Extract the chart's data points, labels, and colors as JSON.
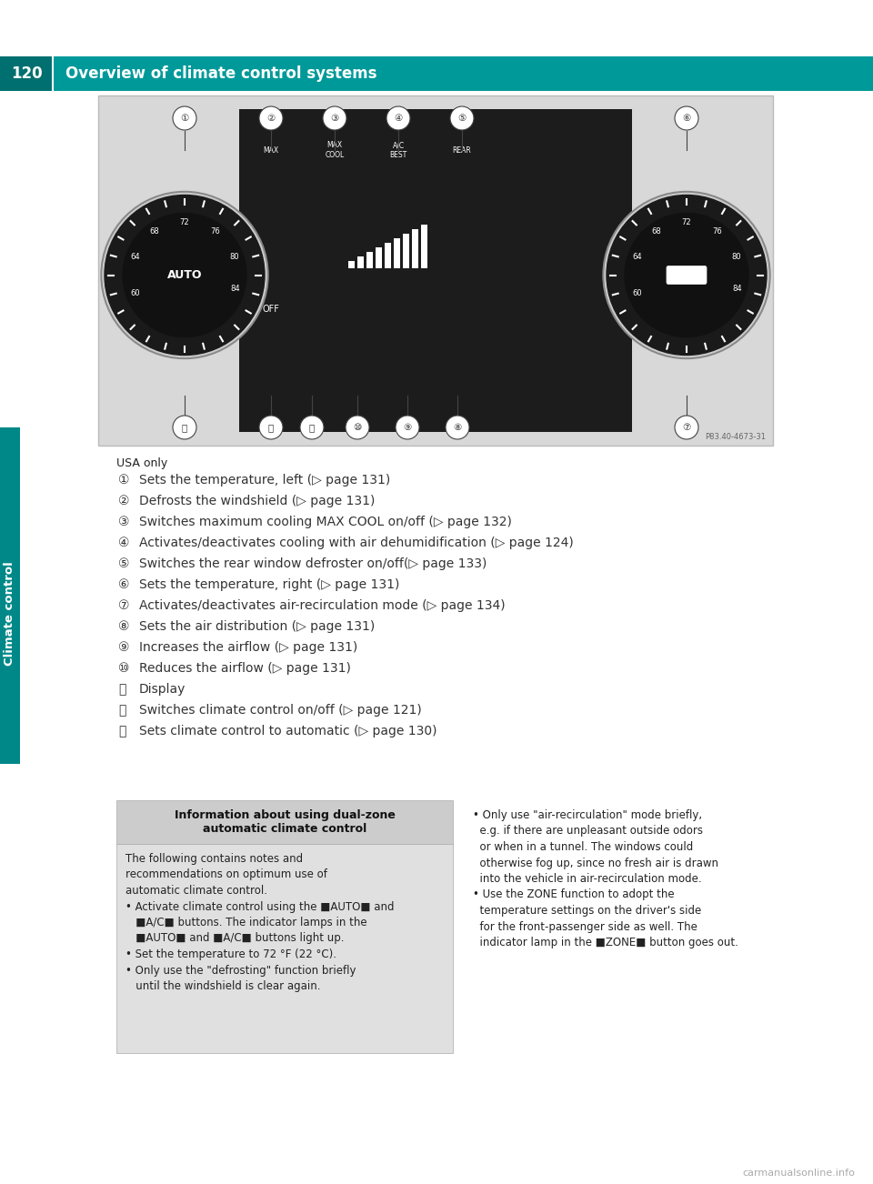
{
  "page_bg": "#ffffff",
  "header_bg": "#009999",
  "header_text": "Overview of climate control systems",
  "header_page_num": "120",
  "header_text_color": "#ffffff",
  "side_tab_color": "#008888",
  "side_tab_label": "Climate control",
  "image_panel_bg": "#d8d8d8",
  "usa_only_text": "USA only",
  "item_keys": [
    "①",
    "②",
    "③",
    "④",
    "⑤",
    "⑥",
    "⑦",
    "⑧",
    "⑨",
    "⑩",
    "⑪",
    "⑫",
    "⑬"
  ],
  "item_vals": [
    "Sets the temperature, left (▷ page 131)",
    "Defrosts the windshield (▷ page 131)",
    "Switches maximum cooling MAX COOL on/off (▷ page 132)",
    "Activates/deactivates cooling with air dehumidification (▷ page 124)",
    "Switches the rear window defroster on/off(▷ page 133)",
    "Sets the temperature, right (▷ page 131)",
    "Activates/deactivates air-recirculation mode (▷ page 134)",
    "Sets the air distribution (▷ page 131)",
    "Increases the airflow (▷ page 131)",
    "Reduces the airflow (▷ page 131)",
    "Display",
    "Switches climate control on/off (▷ page 121)",
    "Sets climate control to automatic (▷ page 130)"
  ],
  "info_box_title": "Information about using dual-zone\nautomatic climate control",
  "info_box_bg": "#e0e0e0",
  "info_box_title_bg": "#cccccc",
  "left_body_lines": [
    "The following contains notes and",
    "recommendations on optimum use of",
    "automatic climate control.",
    "• Activate climate control using the AUTO and",
    "   A/C",
    "   BEST  buttons. The indicator lamps in the",
    "   AUTO  and  A/C",
    "   BEST  buttons light up.",
    "• Set the temperature to 72 °F (22 °C).",
    "• Only use the \"defrosting\" function briefly",
    "   until the windshield is clear again."
  ],
  "right_body_lines": [
    "• Only use \"air-recirculation\" mode briefly,",
    "  e.g. if there are unpleasant outside odors",
    "  or when in a tunnel. The windows could",
    "  otherwise fog up, since no fresh air is drawn",
    "  into the vehicle in air-recirculation mode.",
    "• Use the ZONE function to adopt the",
    "  temperature settings on the driver's side",
    "  for the front-passenger side as well. The",
    "  indicator lamp in the  ZONE  button goes out."
  ],
  "footer_text": "carmanualsonline.info",
  "footer_color": "#aaaaaa",
  "photo_ref": "P83.40-4673-31"
}
